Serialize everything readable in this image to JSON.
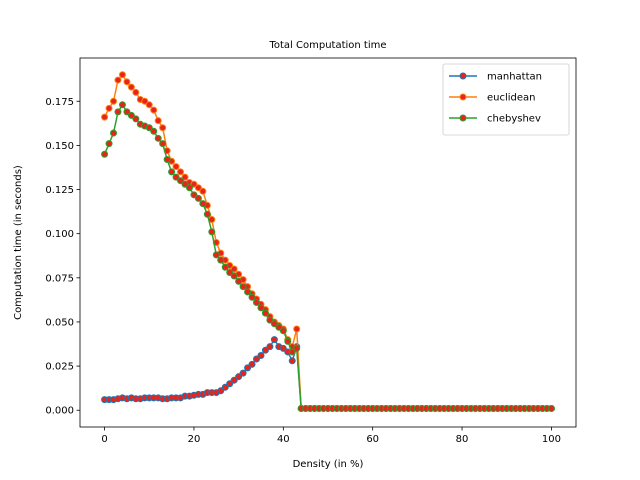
{
  "chart_data": {
    "type": "line",
    "title": "Total Computation time",
    "xlabel": "Density (in %)",
    "ylabel": "Computation time (in seconds)",
    "xlim": [
      -5.5,
      105.5
    ],
    "ylim": [
      -0.0095,
      0.1995
    ],
    "xticks": [
      0,
      20,
      40,
      60,
      80,
      100
    ],
    "xtick_labels": [
      "0",
      "20",
      "40",
      "60",
      "80",
      "100"
    ],
    "yticks": [
      0.0,
      0.025,
      0.05,
      0.075,
      0.1,
      0.125,
      0.15,
      0.175
    ],
    "ytick_labels": [
      "0.000",
      "0.025",
      "0.050",
      "0.075",
      "0.100",
      "0.125",
      "0.150",
      "0.175"
    ],
    "grid": false,
    "legend_position": "top-right",
    "marker": {
      "face_color": "#e8231b",
      "shape": "circle"
    },
    "x": [
      0,
      1,
      2,
      3,
      4,
      5,
      6,
      7,
      8,
      9,
      10,
      11,
      12,
      13,
      14,
      15,
      16,
      17,
      18,
      19,
      20,
      21,
      22,
      23,
      24,
      25,
      26,
      27,
      28,
      29,
      30,
      31,
      32,
      33,
      34,
      35,
      36,
      37,
      38,
      39,
      40,
      41,
      42,
      43,
      44,
      45,
      46,
      47,
      48,
      49,
      50,
      51,
      52,
      53,
      54,
      55,
      56,
      57,
      58,
      59,
      60,
      61,
      62,
      63,
      64,
      65,
      66,
      67,
      68,
      69,
      70,
      71,
      72,
      73,
      74,
      75,
      76,
      77,
      78,
      79,
      80,
      81,
      82,
      83,
      84,
      85,
      86,
      87,
      88,
      89,
      90,
      91,
      92,
      93,
      94,
      95,
      96,
      97,
      98,
      99,
      100
    ],
    "series": [
      {
        "name": "manhattan",
        "color": "#1f77b4",
        "values": [
          0.006,
          0.006,
          0.006,
          0.0065,
          0.007,
          0.0065,
          0.007,
          0.0065,
          0.0065,
          0.007,
          0.007,
          0.007,
          0.007,
          0.0065,
          0.0065,
          0.007,
          0.007,
          0.007,
          0.008,
          0.008,
          0.0085,
          0.009,
          0.009,
          0.01,
          0.01,
          0.01,
          0.011,
          0.013,
          0.015,
          0.017,
          0.019,
          0.021,
          0.024,
          0.026,
          0.029,
          0.031,
          0.034,
          0.036,
          0.04,
          0.036,
          0.035,
          0.033,
          0.028,
          0.036,
          0.001,
          0.001,
          0.001,
          0.001,
          0.001,
          0.001,
          0.001,
          0.001,
          0.001,
          0.001,
          0.001,
          0.001,
          0.001,
          0.001,
          0.001,
          0.001,
          0.001,
          0.001,
          0.001,
          0.001,
          0.001,
          0.001,
          0.001,
          0.001,
          0.001,
          0.001,
          0.001,
          0.001,
          0.001,
          0.001,
          0.001,
          0.001,
          0.001,
          0.001,
          0.001,
          0.001,
          0.001,
          0.001,
          0.001,
          0.001,
          0.001,
          0.001,
          0.001,
          0.001,
          0.001,
          0.001,
          0.001,
          0.001,
          0.001,
          0.001,
          0.001,
          0.001,
          0.001,
          0.001,
          0.001,
          0.001,
          0.001
        ]
      },
      {
        "name": "euclidean",
        "color": "#ff7f0e",
        "values": [
          0.166,
          0.171,
          0.175,
          0.187,
          0.19,
          0.186,
          0.183,
          0.18,
          0.176,
          0.175,
          0.173,
          0.17,
          0.164,
          0.16,
          0.147,
          0.141,
          0.138,
          0.135,
          0.132,
          0.129,
          0.128,
          0.126,
          0.124,
          0.116,
          0.108,
          0.095,
          0.089,
          0.085,
          0.082,
          0.08,
          0.077,
          0.074,
          0.07,
          0.066,
          0.063,
          0.06,
          0.057,
          0.053,
          0.05,
          0.048,
          0.046,
          0.04,
          0.036,
          0.046,
          0.001,
          0.001,
          0.001,
          0.001,
          0.001,
          0.001,
          0.001,
          0.001,
          0.001,
          0.001,
          0.001,
          0.001,
          0.001,
          0.001,
          0.001,
          0.001,
          0.001,
          0.001,
          0.001,
          0.001,
          0.001,
          0.001,
          0.001,
          0.001,
          0.001,
          0.001,
          0.001,
          0.001,
          0.001,
          0.001,
          0.001,
          0.001,
          0.001,
          0.001,
          0.001,
          0.001,
          0.001,
          0.001,
          0.001,
          0.001,
          0.001,
          0.001,
          0.001,
          0.001,
          0.001,
          0.001,
          0.001,
          0.001,
          0.001,
          0.001,
          0.001,
          0.001,
          0.001,
          0.001,
          0.001,
          0.001,
          0.001
        ]
      },
      {
        "name": "chebyshev",
        "color": "#2ca02c",
        "values": [
          0.145,
          0.151,
          0.157,
          0.169,
          0.173,
          0.169,
          0.167,
          0.165,
          0.162,
          0.161,
          0.16,
          0.158,
          0.154,
          0.151,
          0.142,
          0.135,
          0.132,
          0.13,
          0.128,
          0.126,
          0.122,
          0.12,
          0.117,
          0.111,
          0.101,
          0.088,
          0.085,
          0.081,
          0.078,
          0.076,
          0.073,
          0.07,
          0.067,
          0.064,
          0.061,
          0.058,
          0.055,
          0.051,
          0.049,
          0.047,
          0.045,
          0.039,
          0.033,
          0.035,
          0.001,
          0.001,
          0.001,
          0.001,
          0.001,
          0.001,
          0.001,
          0.001,
          0.001,
          0.001,
          0.001,
          0.001,
          0.001,
          0.001,
          0.001,
          0.001,
          0.001,
          0.001,
          0.001,
          0.001,
          0.001,
          0.001,
          0.001,
          0.001,
          0.001,
          0.001,
          0.001,
          0.001,
          0.001,
          0.001,
          0.001,
          0.001,
          0.001,
          0.001,
          0.001,
          0.001,
          0.001,
          0.001,
          0.001,
          0.001,
          0.001,
          0.001,
          0.001,
          0.001,
          0.001,
          0.001,
          0.001,
          0.001,
          0.001,
          0.001,
          0.001,
          0.001,
          0.001,
          0.001,
          0.001,
          0.001,
          0.001
        ]
      }
    ]
  }
}
